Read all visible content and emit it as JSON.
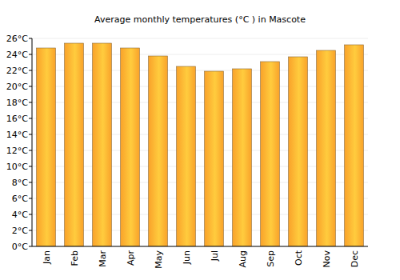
{
  "chart_data": {
    "type": "bar",
    "title": "Average monthly temperatures (°C ) in Mascote",
    "categories": [
      "Jan",
      "Feb",
      "Mar",
      "Apr",
      "May",
      "Jun",
      "Jul",
      "Aug",
      "Sep",
      "Oct",
      "Nov",
      "Dec"
    ],
    "values": [
      24.8,
      25.4,
      25.4,
      24.8,
      23.8,
      22.5,
      21.9,
      22.2,
      23.1,
      23.7,
      24.5,
      25.2
    ],
    "color": "#f9a22a",
    "ylim": [
      0,
      26
    ],
    "yticks": [
      {
        "value": 0,
        "label": "0°C"
      },
      {
        "value": 2,
        "label": "2°C"
      },
      {
        "value": 4,
        "label": "4°C"
      },
      {
        "value": 6,
        "label": "6°C"
      },
      {
        "value": 8,
        "label": "8°C"
      },
      {
        "value": 10,
        "label": "10°C"
      },
      {
        "value": 12,
        "label": "12°C"
      },
      {
        "value": 14,
        "label": "14°C"
      },
      {
        "value": 16,
        "label": "16°C"
      },
      {
        "value": 18,
        "label": "18°C"
      },
      {
        "value": 20,
        "label": "20°C"
      },
      {
        "value": 22,
        "label": "22°C"
      },
      {
        "value": 24,
        "label": "24°C"
      },
      {
        "value": 26,
        "label": "26°C"
      }
    ],
    "grid": true
  }
}
